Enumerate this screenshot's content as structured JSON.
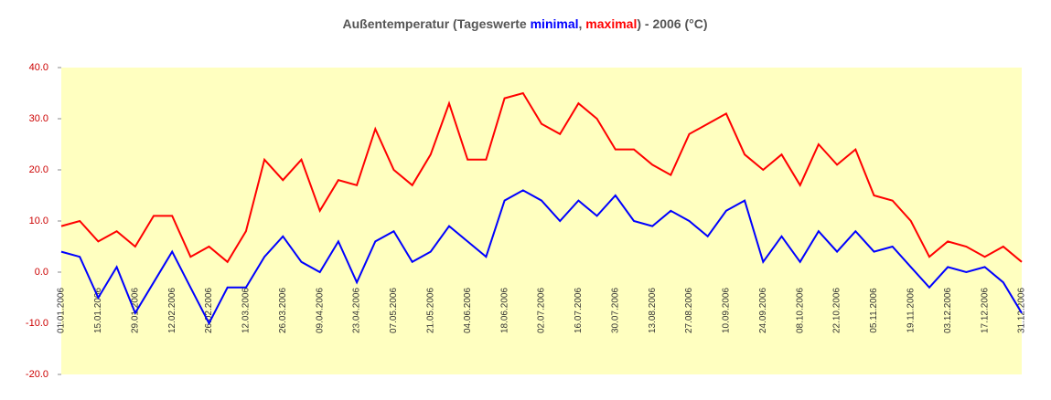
{
  "chart_data": {
    "type": "line",
    "title_parts": [
      "Außentemperatur (Tageswerte ",
      "minimal",
      ", ",
      "maximal",
      ") - 2006 (°C)"
    ],
    "title_colors": [
      "#555555",
      "#0000ff",
      "#555555",
      "#ff0000",
      "#555555"
    ],
    "x": [
      "01.01.2006",
      "08.01.2006",
      "15.01.2006",
      "22.01.2006",
      "29.01.2006",
      "05.02.2006",
      "12.02.2006",
      "19.02.2006",
      "26.02.2006",
      "05.03.2006",
      "12.03.2006",
      "19.03.2006",
      "26.03.2006",
      "02.04.2006",
      "09.04.2006",
      "16.04.2006",
      "23.04.2006",
      "30.04.2006",
      "07.05.2006",
      "14.05.2006",
      "21.05.2006",
      "28.05.2006",
      "04.06.2006",
      "11.06.2006",
      "18.06.2006",
      "25.06.2006",
      "02.07.2006",
      "09.07.2006",
      "16.07.2006",
      "23.07.2006",
      "30.07.2006",
      "06.08.2006",
      "13.08.2006",
      "20.08.2006",
      "27.08.2006",
      "03.09.2006",
      "10.09.2006",
      "17.09.2006",
      "24.09.2006",
      "01.10.2006",
      "08.10.2006",
      "15.10.2006",
      "22.10.2006",
      "29.10.2006",
      "05.11.2006",
      "12.11.2006",
      "19.11.2006",
      "26.11.2006",
      "03.12.2006",
      "10.12.2006",
      "17.12.2006",
      "24.12.2006",
      "31.12.2006"
    ],
    "series": [
      {
        "name": "maximal",
        "color": "#ff0000",
        "values": [
          9,
          10,
          6,
          8,
          5,
          11,
          11,
          3,
          5,
          2,
          8,
          22,
          18,
          22,
          12,
          18,
          17,
          28,
          20,
          17,
          23,
          33,
          22,
          22,
          34,
          35,
          29,
          27,
          33,
          30,
          24,
          24,
          21,
          19,
          27,
          29,
          31,
          23,
          20,
          23,
          17,
          25,
          21,
          24,
          15,
          14,
          10,
          3,
          6,
          5,
          3,
          5,
          2
        ]
      },
      {
        "name": "minimal",
        "color": "#0000ff",
        "values": [
          4,
          3,
          -5,
          1,
          -8,
          -2,
          4,
          -3,
          -10,
          -3,
          -3,
          3,
          7,
          2,
          0,
          6,
          -2,
          6,
          8,
          2,
          4,
          9,
          6,
          3,
          14,
          16,
          14,
          10,
          14,
          11,
          15,
          10,
          9,
          12,
          10,
          7,
          12,
          14,
          2,
          7,
          2,
          8,
          4,
          8,
          4,
          5,
          1,
          -3,
          1,
          0,
          1,
          -2,
          -8
        ]
      }
    ],
    "xticks": [
      "01.01.2006",
      "15.01.2006",
      "29.01.2006",
      "12.02.2006",
      "26.02.2006",
      "12.03.2006",
      "26.03.2006",
      "09.04.2006",
      "23.04.2006",
      "07.05.2006",
      "21.05.2006",
      "04.06.2006",
      "18.06.2006",
      "02.07.2006",
      "16.07.2006",
      "30.07.2006",
      "13.08.2006",
      "27.08.2006",
      "10.09.2006",
      "24.09.2006",
      "08.10.2006",
      "22.10.2006",
      "05.11.2006",
      "19.11.2006",
      "03.12.2006",
      "17.12.2006",
      "31.12.2006"
    ],
    "xlim": [
      "01.01.2006",
      "31.12.2006"
    ],
    "ylim": [
      -20,
      40
    ],
    "yticks": [
      {
        "value": -20,
        "label": "-20.0"
      },
      {
        "value": -10,
        "label": "-10.0"
      },
      {
        "value": 0,
        "label": "0.0"
      },
      {
        "value": 10,
        "label": "10.0"
      },
      {
        "value": 20,
        "label": "20.0"
      },
      {
        "value": 30,
        "label": "30.0"
      },
      {
        "value": 40,
        "label": "40.0"
      }
    ],
    "plot_background": "#ffffc0"
  }
}
